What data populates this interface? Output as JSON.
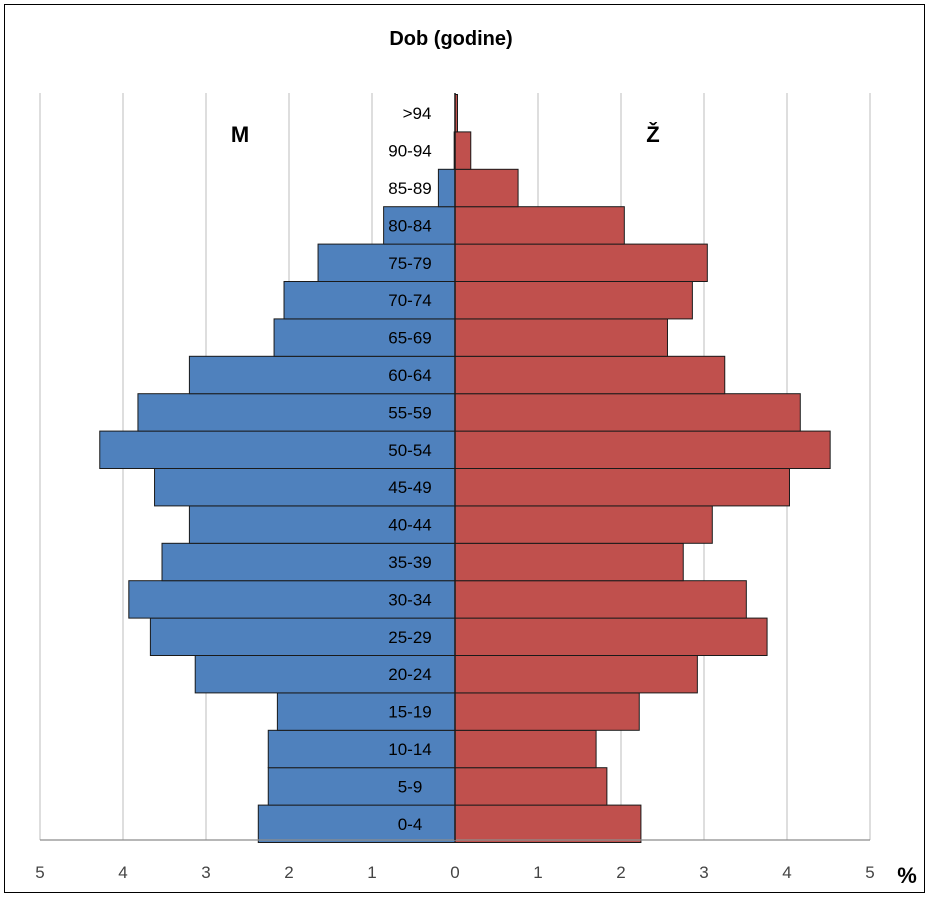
{
  "chart_data": {
    "type": "bar",
    "orientation": "horizontal",
    "layout": "population-pyramid",
    "title": "Dob (godine)",
    "unit_label": "%",
    "left_label": "M",
    "right_label": "Ž",
    "xlim": [
      -5,
      5
    ],
    "x_ticks": [
      -5,
      -4,
      -3,
      -2,
      -1,
      0,
      1,
      2,
      3,
      4,
      5
    ],
    "x_tick_labels": [
      "5",
      "4",
      "3",
      "2",
      "1",
      "0",
      "1",
      "2",
      "3",
      "4",
      "5"
    ],
    "grid": true,
    "categories": [
      "0-4",
      "5-9",
      "10-14",
      "15-19",
      "20-24",
      "25-29",
      "30-34",
      "35-39",
      "40-44",
      "45-49",
      "50-54",
      "55-59",
      "60-64",
      "65-69",
      "70-74",
      "75-79",
      "80-84",
      "85-89",
      "90-94",
      ">94"
    ],
    "series": [
      {
        "name": "M",
        "color": "#4f81bd",
        "values": [
          2.37,
          2.25,
          2.25,
          2.14,
          3.13,
          3.67,
          3.93,
          3.53,
          3.2,
          3.62,
          4.28,
          3.82,
          3.2,
          2.18,
          2.06,
          1.65,
          0.86,
          0.2,
          0.01,
          0.0
        ]
      },
      {
        "name": "Ž",
        "color": "#c0504d",
        "values": [
          2.24,
          1.83,
          1.7,
          2.22,
          2.92,
          3.76,
          3.51,
          2.75,
          3.1,
          4.03,
          4.52,
          4.16,
          3.25,
          2.56,
          2.86,
          3.04,
          2.04,
          0.76,
          0.19,
          0.03
        ]
      }
    ]
  }
}
